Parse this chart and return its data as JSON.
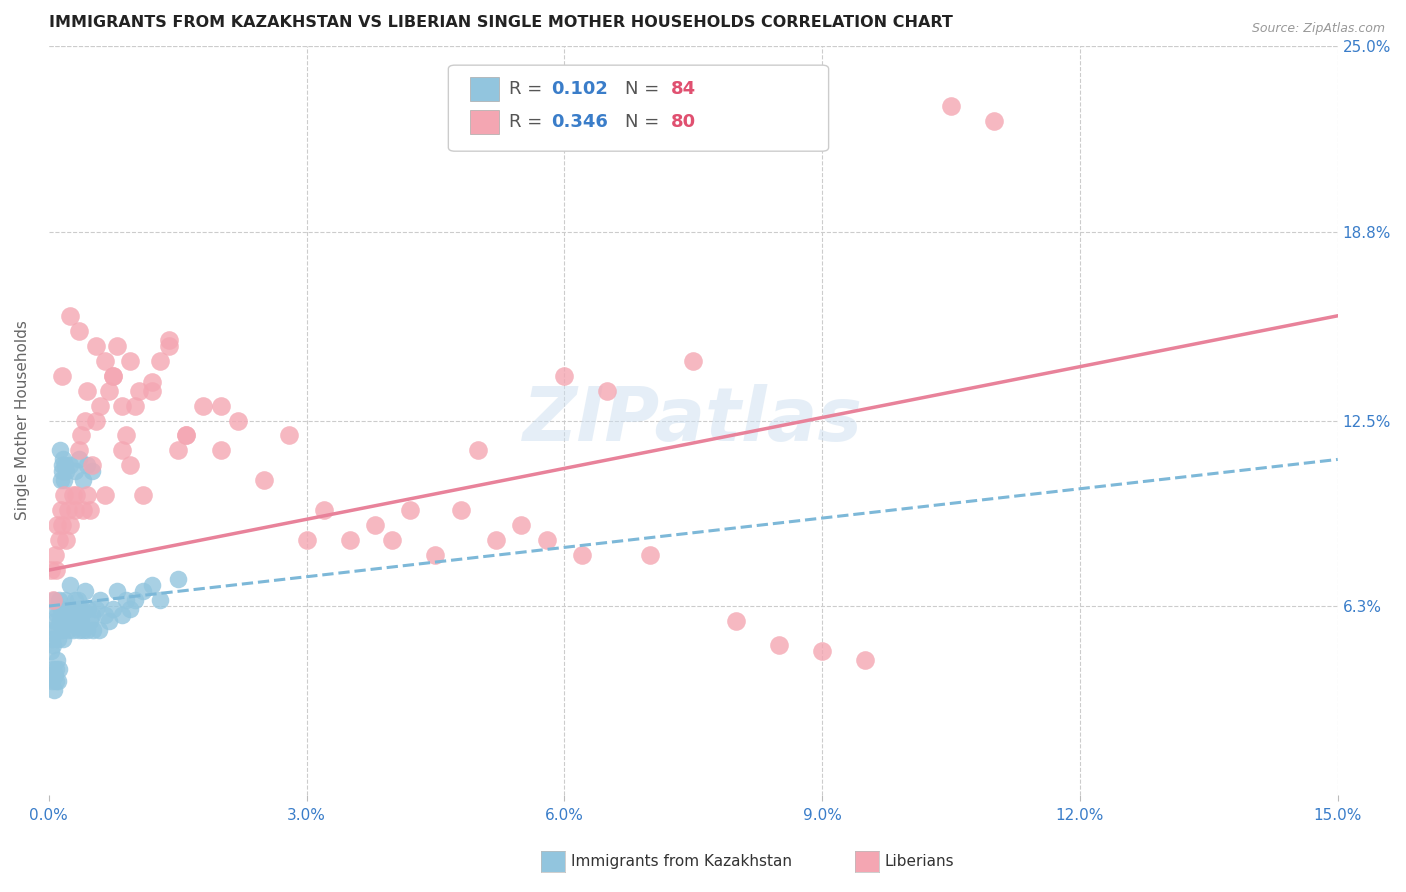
{
  "title": "IMMIGRANTS FROM KAZAKHSTAN VS LIBERIAN SINGLE MOTHER HOUSEHOLDS CORRELATION CHART",
  "source": "Source: ZipAtlas.com",
  "xlabel_vals": [
    0.0,
    3.0,
    6.0,
    9.0,
    12.0,
    15.0
  ],
  "ylabel_vals": [
    6.3,
    12.5,
    18.8,
    25.0
  ],
  "xlim": [
    0.0,
    15.0
  ],
  "ylim": [
    0.0,
    25.0
  ],
  "kaz_color": "#92c5de",
  "lib_color": "#f4a6b2",
  "kaz_line_color": "#7db8d8",
  "lib_line_color": "#e8829a",
  "watermark": "ZIPatlas",
  "kaz_scatter_x": [
    0.02,
    0.03,
    0.04,
    0.05,
    0.06,
    0.07,
    0.08,
    0.09,
    0.1,
    0.11,
    0.12,
    0.13,
    0.14,
    0.15,
    0.16,
    0.17,
    0.18,
    0.19,
    0.2,
    0.21,
    0.22,
    0.23,
    0.24,
    0.25,
    0.26,
    0.27,
    0.28,
    0.29,
    0.3,
    0.31,
    0.32,
    0.33,
    0.34,
    0.35,
    0.36,
    0.37,
    0.38,
    0.39,
    0.4,
    0.42,
    0.44,
    0.46,
    0.48,
    0.5,
    0.52,
    0.55,
    0.58,
    0.6,
    0.65,
    0.7,
    0.75,
    0.8,
    0.85,
    0.9,
    0.95,
    1.0,
    1.1,
    1.2,
    1.3,
    1.5,
    0.03,
    0.04,
    0.05,
    0.06,
    0.07,
    0.08,
    0.09,
    0.1,
    0.11,
    0.12,
    0.13,
    0.14,
    0.15,
    0.16,
    0.17,
    0.18,
    0.19,
    0.2,
    0.25,
    0.3,
    0.35,
    0.4,
    0.45,
    0.5
  ],
  "kaz_scatter_y": [
    5.5,
    4.8,
    5.2,
    5.0,
    6.5,
    5.8,
    6.2,
    5.5,
    6.0,
    5.2,
    6.5,
    5.8,
    6.2,
    5.5,
    6.0,
    5.2,
    5.8,
    6.5,
    5.8,
    6.2,
    5.5,
    6.0,
    5.8,
    7.0,
    6.2,
    5.8,
    5.5,
    6.2,
    5.8,
    6.5,
    6.0,
    5.8,
    6.5,
    5.5,
    6.2,
    6.0,
    5.8,
    6.2,
    5.5,
    6.8,
    5.5,
    6.2,
    5.8,
    6.0,
    5.5,
    6.2,
    5.5,
    6.5,
    6.0,
    5.8,
    6.2,
    6.8,
    6.0,
    6.5,
    6.2,
    6.5,
    6.8,
    7.0,
    6.5,
    7.2,
    4.0,
    3.8,
    4.2,
    3.5,
    4.0,
    3.8,
    4.2,
    4.5,
    3.8,
    4.2,
    11.5,
    10.5,
    11.0,
    10.8,
    11.2,
    10.5,
    11.0,
    10.8,
    11.0,
    10.8,
    11.2,
    10.5,
    11.0,
    10.8
  ],
  "lib_scatter_x": [
    0.03,
    0.05,
    0.07,
    0.09,
    0.1,
    0.12,
    0.14,
    0.16,
    0.18,
    0.2,
    0.22,
    0.25,
    0.28,
    0.3,
    0.32,
    0.35,
    0.38,
    0.4,
    0.42,
    0.45,
    0.48,
    0.5,
    0.55,
    0.6,
    0.65,
    0.7,
    0.75,
    0.8,
    0.85,
    0.9,
    0.95,
    1.0,
    1.1,
    1.2,
    1.3,
    1.4,
    1.5,
    1.6,
    1.8,
    2.0,
    2.2,
    2.5,
    2.8,
    3.0,
    3.2,
    3.5,
    3.8,
    4.0,
    4.2,
    4.5,
    4.8,
    5.0,
    5.2,
    5.5,
    5.8,
    6.0,
    6.2,
    6.5,
    7.0,
    7.5,
    8.0,
    8.5,
    9.0,
    9.5,
    10.5,
    11.0,
    0.15,
    0.25,
    0.35,
    0.45,
    0.55,
    0.65,
    0.75,
    0.85,
    0.95,
    1.05,
    1.2,
    1.4,
    1.6,
    2.0
  ],
  "lib_scatter_y": [
    7.5,
    6.5,
    8.0,
    7.5,
    9.0,
    8.5,
    9.5,
    9.0,
    10.0,
    8.5,
    9.5,
    9.0,
    10.0,
    9.5,
    10.0,
    11.5,
    12.0,
    9.5,
    12.5,
    10.0,
    9.5,
    11.0,
    12.5,
    13.0,
    10.0,
    13.5,
    14.0,
    15.0,
    11.5,
    12.0,
    11.0,
    13.0,
    10.0,
    13.5,
    14.5,
    15.0,
    11.5,
    12.0,
    13.0,
    11.5,
    12.5,
    10.5,
    12.0,
    8.5,
    9.5,
    8.5,
    9.0,
    8.5,
    9.5,
    8.0,
    9.5,
    11.5,
    8.5,
    9.0,
    8.5,
    14.0,
    8.0,
    13.5,
    8.0,
    14.5,
    5.8,
    5.0,
    4.8,
    4.5,
    23.0,
    22.5,
    14.0,
    16.0,
    15.5,
    13.5,
    15.0,
    14.5,
    14.0,
    13.0,
    14.5,
    13.5,
    13.8,
    15.2,
    12.0,
    13.0
  ],
  "kaz_trend_x": [
    0.0,
    15.0
  ],
  "kaz_trend_y": [
    6.3,
    11.2
  ],
  "lib_trend_x": [
    0.0,
    15.0
  ],
  "lib_trend_y": [
    7.5,
    16.0
  ]
}
